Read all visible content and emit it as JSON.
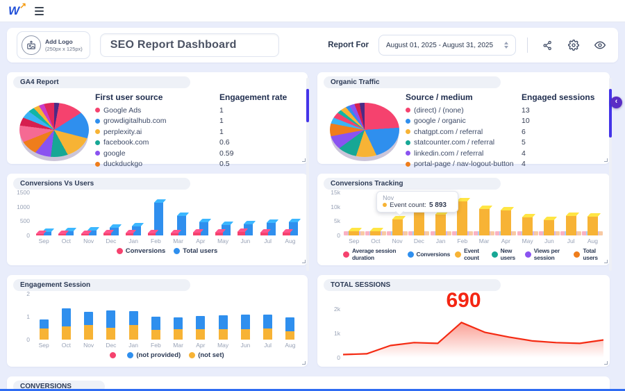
{
  "topbar": {
    "logo_text": "W",
    "logo_arrow": "↗"
  },
  "header": {
    "add_logo_line1": "Add Logo",
    "add_logo_line2": "(250px x 125px)",
    "title_value": "SEO Report Dashboard",
    "report_for_label": "Report For",
    "date_range_value": "August 01, 2025 - August 31, 2025"
  },
  "months": [
    "Sep",
    "Oct",
    "Nov",
    "Dec",
    "Jan",
    "Feb",
    "Mar",
    "Apr",
    "May",
    "Jun",
    "Jul",
    "Aug"
  ],
  "colors": {
    "pink": "#f5426e",
    "blue": "#2f8fee",
    "yellow": "#f7b335",
    "teal": "#17a795",
    "purple": "#8a53f0",
    "orange": "#ef7d1b",
    "red_line": "#f42a12",
    "scroll_thumb": "#4434e8",
    "collapse_btn": "#5a2ec5"
  },
  "panels": {
    "ga4": {
      "title": "GA4 Report",
      "col1": "First user source",
      "col2": "Engagement rate",
      "rows": [
        {
          "label": "Google Ads",
          "value": "1",
          "color": "#f5426e"
        },
        {
          "label": "growdigitalhub.com",
          "value": "1",
          "color": "#2f8fee"
        },
        {
          "label": "perplexity.ai",
          "value": "1",
          "color": "#f7b335"
        },
        {
          "label": "facebook.com",
          "value": "0.6",
          "color": "#17a795"
        },
        {
          "label": "google",
          "value": "0.59",
          "color": "#8a53f0"
        },
        {
          "label": "duckduckgo",
          "value": "0.5",
          "color": "#ef7d1b"
        }
      ]
    },
    "organic": {
      "title": "Organic Traffic",
      "col1": "Source / medium",
      "col2": "Engaged sessions",
      "rows": [
        {
          "label": "(direct) / (none)",
          "value": "13",
          "color": "#f5426e"
        },
        {
          "label": "google / organic",
          "value": "10",
          "color": "#2f8fee"
        },
        {
          "label": "chatgpt.com / referral",
          "value": "6",
          "color": "#f7b335"
        },
        {
          "label": "statcounter.com / referral",
          "value": "5",
          "color": "#17a795"
        },
        {
          "label": "linkedin.com / referral",
          "value": "4",
          "color": "#8a53f0"
        },
        {
          "label": "portal-page / nav-logout-button",
          "value": "4",
          "color": "#ef7d1b"
        }
      ]
    },
    "conversions_vs_users": {
      "title": "Conversions Vs Users"
    },
    "conversions_tracking": {
      "title": "Conversions Tracking"
    },
    "engagement_session": {
      "title": "Engagement Session"
    },
    "total_sessions": {
      "title": "TOTAL SESSIONS",
      "big_value": "690"
    },
    "conversions": {
      "title": "CONVERSIONS"
    }
  },
  "chart_data": [
    {
      "id": "ga4_pie",
      "type": "pie",
      "title": "GA4 Report — First user source",
      "slices": [
        {
          "color": "#4c2a85",
          "pct": 3
        },
        {
          "color": "#f5426e",
          "pct": 13
        },
        {
          "color": "#2f8fee",
          "pct": 13
        },
        {
          "color": "#f7b335",
          "pct": 13
        },
        {
          "color": "#17a795",
          "pct": 10
        },
        {
          "color": "#8a53f0",
          "pct": 9
        },
        {
          "color": "#ef7d1b",
          "pct": 8
        },
        {
          "color": "#f56a93",
          "pct": 8
        },
        {
          "color": "#d61f4e",
          "pct": 4
        },
        {
          "color": "#3bb3f5",
          "pct": 4
        },
        {
          "color": "#12b5a5",
          "pct": 3
        },
        {
          "color": "#f7b335",
          "pct": 3
        },
        {
          "color": "#c93cc9",
          "pct": 3
        },
        {
          "color": "#e0275a",
          "pct": 6
        }
      ]
    },
    {
      "id": "organic_pie",
      "type": "pie",
      "title": "Organic Traffic — Source / medium",
      "slices": [
        {
          "color": "#f5426e",
          "pct": 24
        },
        {
          "color": "#2f8fee",
          "pct": 19
        },
        {
          "color": "#f7b335",
          "pct": 12
        },
        {
          "color": "#17a795",
          "pct": 10
        },
        {
          "color": "#8a53f0",
          "pct": 7
        },
        {
          "color": "#ef7d1b",
          "pct": 6
        },
        {
          "color": "#3bb3f5",
          "pct": 3
        },
        {
          "color": "#f5426e",
          "pct": 3
        },
        {
          "color": "#12b5a5",
          "pct": 2
        },
        {
          "color": "#f7b335",
          "pct": 3
        },
        {
          "color": "#2f8fee",
          "pct": 2
        },
        {
          "color": "#8a53f0",
          "pct": 3
        },
        {
          "color": "#d61f4e",
          "pct": 3
        },
        {
          "color": "#4c2a85",
          "pct": 3
        }
      ]
    },
    {
      "id": "conversions_vs_users",
      "type": "bar",
      "title": "Conversions Vs Users",
      "categories": [
        "Sep",
        "Oct",
        "Nov",
        "Dec",
        "Jan",
        "Feb",
        "Mar",
        "Apr",
        "May",
        "Jun",
        "Jul",
        "Aug"
      ],
      "series": [
        {
          "name": "Conversions",
          "color": "#f5426e",
          "values": [
            60,
            65,
            70,
            90,
            95,
            100,
            105,
            115,
            120,
            140,
            130,
            125
          ]
        },
        {
          "name": "Total users",
          "color": "#2f8fee",
          "values": [
            150,
            165,
            190,
            290,
            350,
            1150,
            700,
            490,
            390,
            400,
            460,
            480
          ]
        }
      ],
      "ylim": [
        0,
        1500
      ],
      "ytick_values": [
        0,
        500,
        1000,
        1500
      ],
      "ytick_labels": [
        "0",
        "500",
        "1000",
        "1500"
      ],
      "grid": false,
      "legend_position": "bottom"
    },
    {
      "id": "conversions_tracking",
      "type": "bar",
      "title": "Conversions Tracking",
      "categories": [
        "Sep",
        "Oct",
        "Nov",
        "Dec",
        "Jan",
        "Feb",
        "Mar",
        "Apr",
        "May",
        "Jun",
        "Jul",
        "Aug"
      ],
      "series": [
        {
          "name": "Event count",
          "color": "#f7b335",
          "values": [
            1800,
            1700,
            5893,
            11000,
            7400,
            12200,
            9500,
            9000,
            6500,
            5600,
            7000,
            6800
          ]
        }
      ],
      "minor_series": [
        {
          "name": "Average session duration",
          "color": "#f5426e"
        },
        {
          "name": "Conversions",
          "color": "#2f8fee"
        },
        {
          "name": "New users",
          "color": "#17a795"
        },
        {
          "name": "Views per session",
          "color": "#8a53f0"
        },
        {
          "name": "Total users",
          "color": "#ef7d1b"
        }
      ],
      "legend": [
        {
          "label": "Average session duration",
          "color": "#f5426e"
        },
        {
          "label": "Conversions",
          "color": "#2f8fee"
        },
        {
          "label": "Event count",
          "color": "#f7b335"
        },
        {
          "label": "New users",
          "color": "#17a795"
        },
        {
          "label": "Views per session",
          "color": "#8a53f0"
        },
        {
          "label": "Total users",
          "color": "#ef7d1b"
        }
      ],
      "tooltip": {
        "category": "Nov",
        "label": "Event count",
        "value": "5 893",
        "color": "#f7b335",
        "target_index": 2
      },
      "ylim": [
        0,
        15000
      ],
      "ytick_values": [
        0,
        5000,
        10000,
        15000
      ],
      "ytick_labels": [
        "0",
        "5k",
        "10k",
        "15k"
      ],
      "grid": false,
      "legend_position": "bottom"
    },
    {
      "id": "engagement_session",
      "type": "stacked-bar",
      "title": "Engagement Session",
      "categories": [
        "Sep",
        "Oct",
        "Nov",
        "Dec",
        "Jan",
        "Feb",
        "Mar",
        "Apr",
        "May",
        "Jun",
        "Jul",
        "Aug"
      ],
      "series": [
        {
          "name": "(not set)",
          "color": "#f7b335",
          "values": [
            0.48,
            0.57,
            0.63,
            0.53,
            0.63,
            0.43,
            0.45,
            0.45,
            0.46,
            0.47,
            0.48,
            0.37
          ]
        },
        {
          "name": "(not provided)",
          "color": "#2f8fee",
          "values": [
            0.41,
            0.78,
            0.59,
            0.74,
            0.62,
            0.57,
            0.51,
            0.58,
            0.59,
            0.63,
            0.62,
            0.6
          ]
        }
      ],
      "legend": [
        {
          "label": "",
          "color": "#f5426e"
        },
        {
          "label": "(not provided)",
          "color": "#2f8fee"
        },
        {
          "label": "(not set)",
          "color": "#f7b335"
        }
      ],
      "ylim": [
        0,
        2
      ],
      "ytick_values": [
        0,
        1,
        2
      ],
      "ytick_labels": [
        "0",
        "1",
        "2"
      ],
      "grid": false,
      "legend_position": "bottom"
    },
    {
      "id": "total_sessions",
      "type": "area",
      "title": "TOTAL SESSIONS",
      "x": [
        "Sep",
        "Oct",
        "Nov",
        "Dec",
        "Jan",
        "Feb",
        "Mar",
        "Apr",
        "May",
        "Jun",
        "Jul",
        "Aug"
      ],
      "values": [
        130,
        160,
        500,
        620,
        590,
        1450,
        1040,
        850,
        690,
        620,
        590,
        730
      ],
      "big_value": "690",
      "color": "#f42a12",
      "ylim": [
        0,
        2000
      ],
      "ytick_values": [
        0,
        1000,
        2000
      ],
      "ytick_labels": [
        "0",
        "1k",
        "2k"
      ],
      "grid": false
    }
  ]
}
